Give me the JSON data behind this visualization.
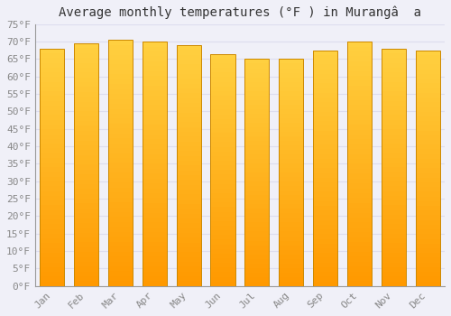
{
  "title": "Average monthly temperatures (°F ) in Murangâ  a",
  "months": [
    "Jan",
    "Feb",
    "Mar",
    "Apr",
    "May",
    "Jun",
    "Jul",
    "Aug",
    "Sep",
    "Oct",
    "Nov",
    "Dec"
  ],
  "values": [
    68,
    69.5,
    70.5,
    70,
    69,
    66.5,
    65,
    65,
    67.5,
    70,
    68,
    67.5
  ],
  "bar_color_main": "#FFAA00",
  "bar_color_top": "#FFD040",
  "bar_color_bottom": "#FF9900",
  "bar_edge_color": "#CC8800",
  "background_color": "#F0F0F8",
  "plot_bg_color": "#F0F0F8",
  "grid_color": "#DDDDEE",
  "ylim": [
    0,
    75
  ],
  "ytick_step": 5,
  "title_fontsize": 10,
  "tick_fontsize": 8,
  "font_family": "monospace"
}
